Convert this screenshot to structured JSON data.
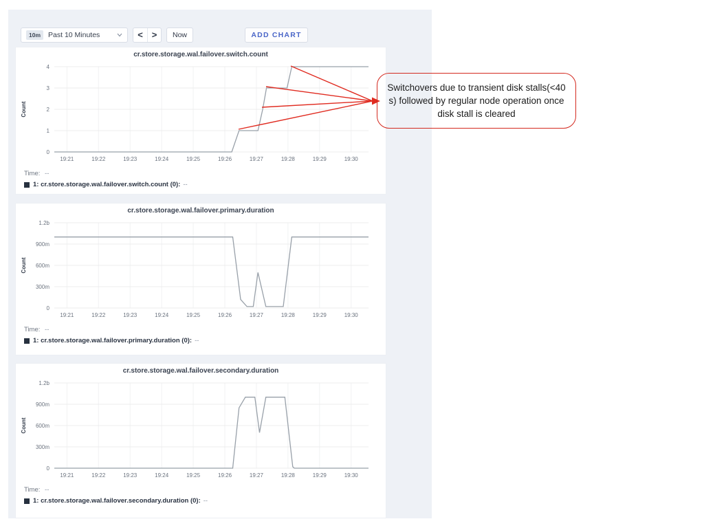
{
  "toolbar": {
    "range_badge": "10m",
    "range_label": "Past 10 Minutes",
    "back_label": "<",
    "forward_label": ">",
    "now_label": "Now",
    "add_chart_label": "ADD CHART",
    "add_chart_color": "#4a66c8"
  },
  "annotation": {
    "text": "Switchovers due to transient disk stalls(<40 s) followed by regular node operation once disk stall is cleared",
    "border_color": "#d3281e",
    "arrow_color": "#e02b20",
    "target": [
      542,
      147
    ],
    "sources": [
      [
        423,
        96
      ],
      [
        387,
        126
      ],
      [
        381,
        156
      ],
      [
        347,
        188
      ]
    ]
  },
  "chart_data": [
    {
      "type": "line",
      "title": "cr.store.storage.wal.failover.switch.count",
      "ylabel": "Count",
      "line_color": "#98a0a9",
      "ylim": [
        0,
        4
      ],
      "xlim": [
        20.6,
        30.55
      ],
      "yticks": [
        {
          "v": 0,
          "label": "0"
        },
        {
          "v": 1,
          "label": "1"
        },
        {
          "v": 2,
          "label": "2"
        },
        {
          "v": 3,
          "label": "3"
        },
        {
          "v": 4,
          "label": "4"
        }
      ],
      "xticks": [
        {
          "v": 21,
          "label": "19:21"
        },
        {
          "v": 22,
          "label": "19:22"
        },
        {
          "v": 23,
          "label": "19:23"
        },
        {
          "v": 24,
          "label": "19:24"
        },
        {
          "v": 25,
          "label": "19:25"
        },
        {
          "v": 26,
          "label": "19:26"
        },
        {
          "v": 27,
          "label": "19:27"
        },
        {
          "v": 28,
          "label": "19:28"
        },
        {
          "v": 29,
          "label": "19:29"
        },
        {
          "v": 30,
          "label": "19:30"
        }
      ],
      "points": [
        [
          20.6,
          0
        ],
        [
          26.22,
          0
        ],
        [
          26.45,
          1
        ],
        [
          27.05,
          1
        ],
        [
          27.2,
          2
        ],
        [
          27.32,
          3
        ],
        [
          27.97,
          3
        ],
        [
          28.12,
          4
        ],
        [
          30.55,
          4
        ]
      ],
      "legend_time_label": "Time:",
      "legend_time_value": "--",
      "legend_series_label": "1: cr.store.storage.wal.failover.switch.count (0):",
      "legend_series_value": "--"
    },
    {
      "type": "line",
      "title": "cr.store.storage.wal.failover.primary.duration",
      "ylabel": "Count",
      "line_color": "#98a0a9",
      "ylim": [
        0,
        1.2
      ],
      "xlim": [
        20.6,
        30.55
      ],
      "yticks": [
        {
          "v": 0,
          "label": "0"
        },
        {
          "v": 0.3,
          "label": "300m"
        },
        {
          "v": 0.6,
          "label": "600m"
        },
        {
          "v": 0.9,
          "label": "900m"
        },
        {
          "v": 1.2,
          "label": "1.2b"
        }
      ],
      "xticks": [
        {
          "v": 21,
          "label": "19:21"
        },
        {
          "v": 22,
          "label": "19:22"
        },
        {
          "v": 23,
          "label": "19:23"
        },
        {
          "v": 24,
          "label": "19:24"
        },
        {
          "v": 25,
          "label": "19:25"
        },
        {
          "v": 26,
          "label": "19:26"
        },
        {
          "v": 27,
          "label": "19:27"
        },
        {
          "v": 28,
          "label": "19:28"
        },
        {
          "v": 29,
          "label": "19:29"
        },
        {
          "v": 30,
          "label": "19:30"
        }
      ],
      "points": [
        [
          20.6,
          1.0
        ],
        [
          26.25,
          1.0
        ],
        [
          26.5,
          0.12
        ],
        [
          26.7,
          0.02
        ],
        [
          26.9,
          0.02
        ],
        [
          27.05,
          0.5
        ],
        [
          27.3,
          0.02
        ],
        [
          27.85,
          0.02
        ],
        [
          28.12,
          1.0
        ],
        [
          30.55,
          1.0
        ]
      ],
      "legend_time_label": "Time:",
      "legend_time_value": "--",
      "legend_series_label": "1: cr.store.storage.wal.failover.primary.duration (0):",
      "legend_series_value": "--"
    },
    {
      "type": "line",
      "title": "cr.store.storage.wal.failover.secondary.duration",
      "ylabel": "Count",
      "line_color": "#98a0a9",
      "ylim": [
        0,
        1.2
      ],
      "xlim": [
        20.6,
        30.55
      ],
      "yticks": [
        {
          "v": 0,
          "label": "0"
        },
        {
          "v": 0.3,
          "label": "300m"
        },
        {
          "v": 0.6,
          "label": "600m"
        },
        {
          "v": 0.9,
          "label": "900m"
        },
        {
          "v": 1.2,
          "label": "1.2b"
        }
      ],
      "xticks": [
        {
          "v": 21,
          "label": "19:21"
        },
        {
          "v": 22,
          "label": "19:22"
        },
        {
          "v": 23,
          "label": "19:23"
        },
        {
          "v": 24,
          "label": "19:24"
        },
        {
          "v": 25,
          "label": "19:25"
        },
        {
          "v": 26,
          "label": "19:26"
        },
        {
          "v": 27,
          "label": "19:27"
        },
        {
          "v": 28,
          "label": "19:28"
        },
        {
          "v": 29,
          "label": "19:29"
        },
        {
          "v": 30,
          "label": "19:30"
        }
      ],
      "points": [
        [
          20.6,
          0
        ],
        [
          26.25,
          0
        ],
        [
          26.45,
          0.85
        ],
        [
          26.65,
          1.0
        ],
        [
          26.95,
          1.0
        ],
        [
          27.1,
          0.5
        ],
        [
          27.3,
          1.0
        ],
        [
          27.9,
          1.0
        ],
        [
          28.15,
          0.02
        ],
        [
          28.2,
          0
        ],
        [
          30.55,
          0
        ]
      ],
      "legend_time_label": "Time:",
      "legend_time_value": "--",
      "legend_series_label": "1: cr.store.storage.wal.failover.secondary.duration (0):",
      "legend_series_value": "--"
    }
  ]
}
